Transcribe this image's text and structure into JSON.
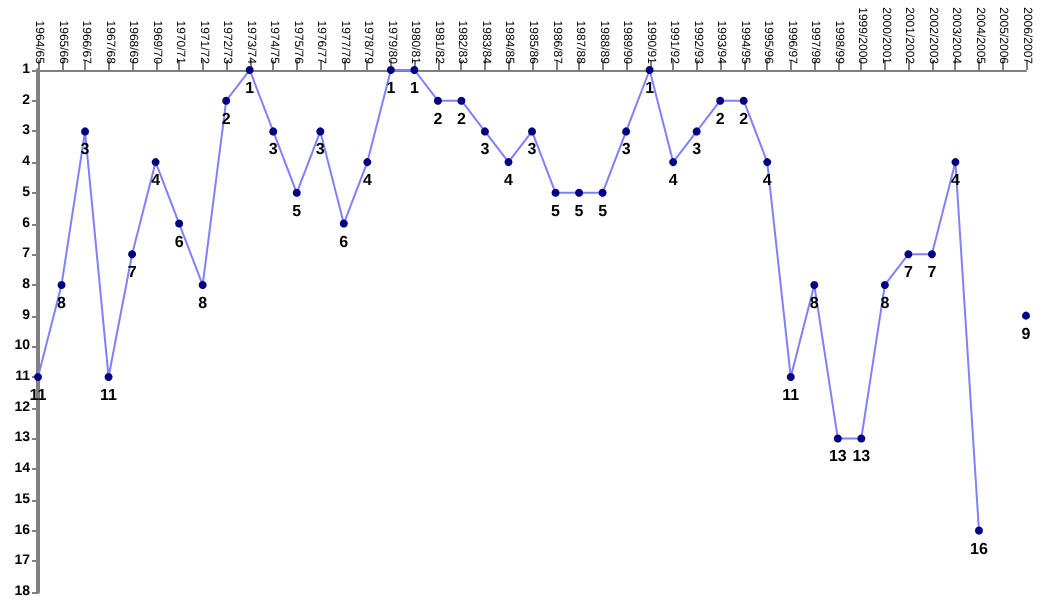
{
  "chart_data": {
    "type": "line",
    "categories": [
      "1964/65",
      "1965/66",
      "1966/67",
      "1967/68",
      "1968/69",
      "1969/70",
      "1970/71",
      "1971/72",
      "1972/73",
      "1973/74",
      "1974/75",
      "1975/76",
      "1976/77",
      "1977/78",
      "1978/79",
      "1979/80",
      "1980/81",
      "1981/82",
      "1982/83",
      "1983/84",
      "1984/85",
      "1985/86",
      "1986/87",
      "1987/88",
      "1988/89",
      "1989/90",
      "1990/91",
      "1991/92",
      "1992/93",
      "1993/94",
      "1994/95",
      "1995/96",
      "1996/97",
      "1997/98",
      "1998/99",
      "1999/2000",
      "2000/2001",
      "2001/2002",
      "2002/2003",
      "2003/2004",
      "2004/2005",
      "2005/2006",
      "2006/2007"
    ],
    "series": [
      {
        "color": "#8080ff",
        "colors": [
          "#000080",
          "#000080",
          "#000080",
          "#000080",
          "#000080",
          "#000080",
          "#000080",
          "#000080",
          "#000080",
          "#000080",
          "#000080",
          "#000080",
          "#000080",
          "#000080",
          "#000080",
          "#000080",
          "#000080",
          "#000080",
          "#000080",
          "#000080",
          "#000080",
          "#000080",
          "#000080",
          "#000080",
          "#000080",
          "#000080",
          "#000080",
          "#000080",
          "#000080",
          "#000080",
          "#000080",
          "#000080",
          "#000080",
          "#000080",
          "#000080",
          "#000080",
          "#000080",
          "#000080",
          "#000080",
          "#000080",
          "#000080",
          "#000080",
          "#000080"
        ],
        "values": [
          11,
          8,
          3,
          11,
          7,
          4,
          6,
          8,
          2,
          1,
          3,
          5,
          3,
          6,
          4,
          1,
          1,
          2,
          2,
          3,
          4,
          3,
          5,
          5,
          5,
          3,
          1,
          4,
          3,
          2,
          2,
          4,
          11,
          8,
          13,
          13,
          8,
          7,
          7,
          4,
          16,
          null,
          9
        ]
      }
    ],
    "ylim": [
      18,
      1
    ],
    "yticks": [
      1,
      2,
      3,
      4,
      5,
      6,
      7,
      8,
      9,
      10,
      11,
      12,
      13,
      14,
      15,
      16,
      17,
      18
    ],
    "marker": "circle",
    "data_labels": true
  }
}
